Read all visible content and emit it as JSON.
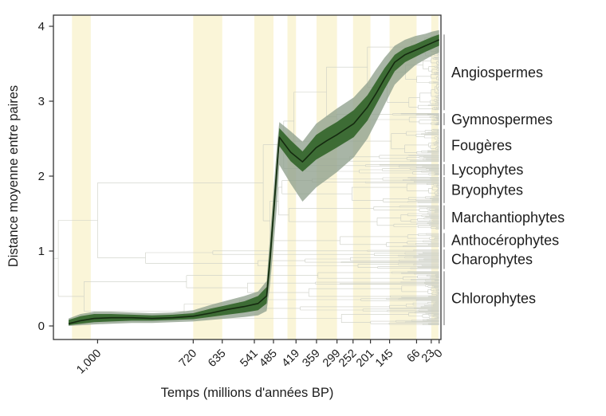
{
  "figure": {
    "ylabel": "Distance moyenne entre paires",
    "xlabel": "Temps (millions d'années BP)"
  },
  "chart_data": {
    "type": "line",
    "title": "",
    "xlabel": "Temps (millions d'années BP)",
    "ylabel": "Distance moyenne entre paires",
    "x_axis_direction": "reversed_time_mya",
    "xlim": [
      1129,
      0
    ],
    "ylim": [
      0,
      4.15
    ],
    "x_ticks": [
      {
        "label": "1,000",
        "t": 1000
      },
      {
        "label": "720",
        "t": 720
      },
      {
        "label": "635",
        "t": 635
      },
      {
        "label": "541",
        "t": 541
      },
      {
        "label": "485",
        "t": 485
      },
      {
        "label": "419",
        "t": 419
      },
      {
        "label": "359",
        "t": 359
      },
      {
        "label": "299",
        "t": 299
      },
      {
        "label": "252",
        "t": 252
      },
      {
        "label": "201",
        "t": 201
      },
      {
        "label": "145",
        "t": 145
      },
      {
        "label": "66",
        "t": 66
      },
      {
        "label": "23",
        "t": 23
      },
      {
        "label": "0",
        "t": 0
      }
    ],
    "y_ticks": [
      {
        "label": "0",
        "v": 0
      },
      {
        "label": "1",
        "v": 1
      },
      {
        "label": "2",
        "v": 2
      },
      {
        "label": "3",
        "v": 3
      },
      {
        "label": "4",
        "v": 4
      }
    ],
    "series": {
      "name": "Distance moyenne entre paires",
      "t_mya": [
        1085,
        1050,
        1010,
        960,
        900,
        840,
        780,
        720,
        670,
        620,
        570,
        530,
        505,
        495,
        485,
        475,
        468,
        435,
        400,
        360,
        330,
        300,
        250,
        210,
        185,
        160,
        130,
        100,
        70,
        40,
        20,
        0
      ],
      "mean": [
        0.03,
        0.07,
        0.1,
        0.11,
        0.11,
        0.1,
        0.11,
        0.13,
        0.17,
        0.22,
        0.26,
        0.3,
        0.4,
        0.9,
        1.5,
        2.1,
        2.52,
        2.32,
        2.19,
        2.38,
        2.47,
        2.55,
        2.7,
        2.92,
        3.1,
        3.3,
        3.52,
        3.62,
        3.68,
        3.74,
        3.78,
        3.82
      ],
      "inner_lo": [
        0.01,
        0.03,
        0.05,
        0.06,
        0.07,
        0.07,
        0.08,
        0.09,
        0.12,
        0.15,
        0.18,
        0.21,
        0.3,
        0.75,
        1.35,
        1.95,
        2.4,
        2.2,
        2.06,
        2.22,
        2.3,
        2.38,
        2.52,
        2.74,
        2.95,
        3.16,
        3.4,
        3.52,
        3.59,
        3.66,
        3.7,
        3.74
      ],
      "inner_hi": [
        0.08,
        0.13,
        0.16,
        0.16,
        0.15,
        0.14,
        0.15,
        0.17,
        0.23,
        0.28,
        0.33,
        0.4,
        0.52,
        1.05,
        1.65,
        2.25,
        2.64,
        2.48,
        2.33,
        2.55,
        2.64,
        2.72,
        2.88,
        3.08,
        3.26,
        3.44,
        3.62,
        3.71,
        3.76,
        3.82,
        3.86,
        3.89
      ],
      "outer_lo": [
        0.0,
        0.01,
        0.02,
        0.03,
        0.04,
        0.04,
        0.05,
        0.06,
        0.08,
        0.1,
        0.12,
        0.14,
        0.2,
        0.55,
        1.05,
        1.6,
        2.15,
        1.9,
        1.66,
        1.85,
        1.95,
        2.05,
        2.25,
        2.5,
        2.72,
        2.95,
        3.22,
        3.36,
        3.48,
        3.56,
        3.61,
        3.65
      ],
      "outer_hi": [
        0.1,
        0.16,
        0.19,
        0.19,
        0.18,
        0.17,
        0.18,
        0.21,
        0.28,
        0.34,
        0.4,
        0.46,
        0.6,
        1.2,
        1.8,
        2.4,
        2.72,
        2.6,
        2.46,
        2.7,
        2.8,
        2.9,
        3.05,
        3.25,
        3.42,
        3.58,
        3.74,
        3.82,
        3.87,
        3.9,
        3.93,
        3.95
      ]
    },
    "period_bands_mya": [
      [
        1075,
        1020
      ],
      [
        720,
        635
      ],
      [
        541,
        485
      ],
      [
        444,
        419
      ],
      [
        359,
        299
      ],
      [
        252,
        201
      ],
      [
        145,
        66
      ],
      [
        23,
        2
      ]
    ],
    "groups": [
      {
        "label": "Angiospermes",
        "span": [
          3.89,
          2.88
        ]
      },
      {
        "label": "Gymnospermes",
        "span": [
          2.84,
          2.68
        ]
      },
      {
        "label": "Fougères",
        "span": [
          2.63,
          2.19
        ]
      },
      {
        "label": "Lycophytes",
        "span": [
          2.16,
          2.01
        ]
      },
      {
        "label": "Bryophytes",
        "span": [
          1.99,
          1.64
        ]
      },
      {
        "label": "Marchantiophytes",
        "span": [
          1.61,
          1.29
        ]
      },
      {
        "label": "Anthocérophytes",
        "span": [
          1.24,
          1.05
        ]
      },
      {
        "label": "Charophytes",
        "span": [
          1.02,
          0.76
        ]
      },
      {
        "label": "Chlorophytes",
        "span": [
          0.73,
          0.01
        ]
      }
    ],
    "legend_position": "none",
    "grid": false,
    "colors": {
      "mean_line": "#152a10",
      "inner_band": "#37682e",
      "outer_band": "#8fa08d",
      "period_band": "#faf5d8",
      "tree_lines": "#cbcec4",
      "frame": "#333333",
      "bracket": "#8f8f8f",
      "text": "#1c1c1c"
    }
  }
}
